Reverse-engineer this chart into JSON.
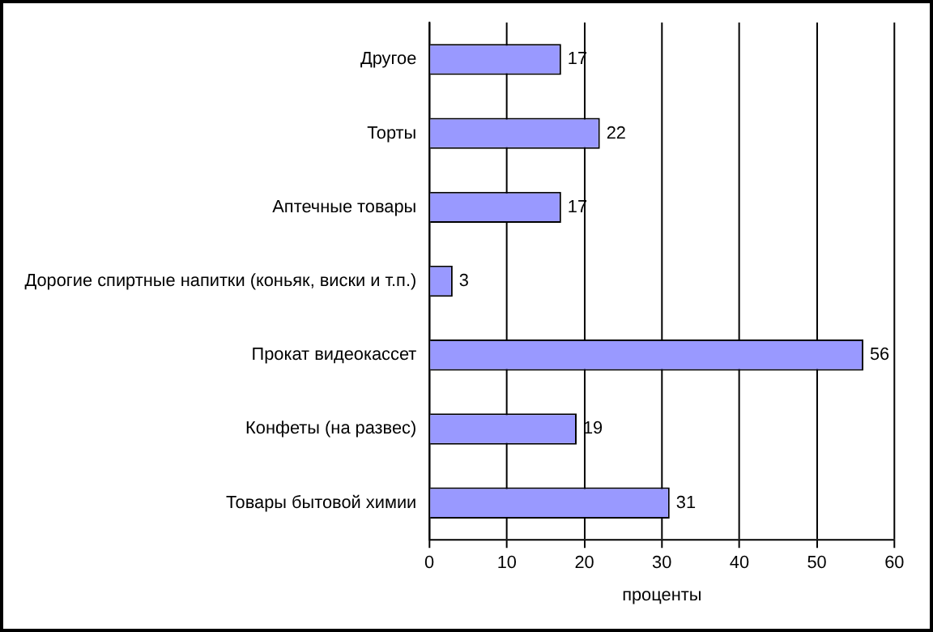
{
  "chart_data": {
    "type": "bar",
    "orientation": "horizontal",
    "xlabel": "проценты",
    "categories": [
      "Другое",
      "Торты",
      "Аптечные товары",
      "Дорогие спиртные напитки (коньяк, виски и т.п.)",
      "Прокат видеокассет",
      "Конфеты (на развес)",
      "Товары бытовой химии"
    ],
    "values": [
      17,
      22,
      17,
      3,
      56,
      19,
      31
    ],
    "color": "#9999ff",
    "xlim": [
      0,
      60
    ],
    "xticks": [
      0,
      10,
      20,
      30,
      40,
      50,
      60
    ],
    "grid": "x",
    "data_labels": true,
    "legend": false
  }
}
